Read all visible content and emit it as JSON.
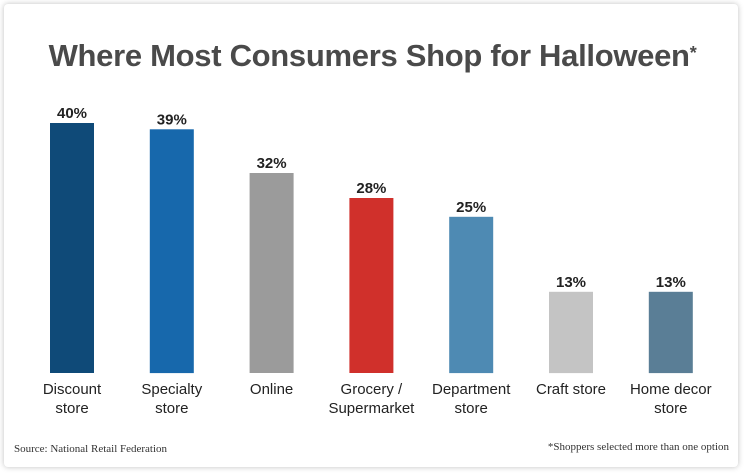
{
  "chart_data": {
    "type": "bar",
    "title": "Where Most Consumers Shop for Halloween",
    "title_mark": "*",
    "categories": [
      [
        "Discount",
        "store"
      ],
      [
        "Specialty",
        "store"
      ],
      [
        "Online"
      ],
      [
        "Grocery /",
        "Supermarket"
      ],
      [
        "Department",
        "store"
      ],
      [
        "Craft store"
      ],
      [
        "Home decor",
        "store"
      ]
    ],
    "values": [
      40,
      39,
      32,
      28,
      25,
      13,
      13
    ],
    "value_labels": [
      "40%",
      "39%",
      "32%",
      "28%",
      "25%",
      "13%",
      "13%"
    ],
    "colors": [
      "#0f4a78",
      "#1768ac",
      "#9b9b9b",
      "#d0302b",
      "#4e8ab3",
      "#c4c4c4",
      "#5a7e96"
    ],
    "ylim": [
      0,
      40
    ],
    "grid": false,
    "legend": "none",
    "xlabel": "",
    "ylabel": ""
  },
  "footer": {
    "source": "Source: National Retail Federation",
    "note": "*Shoppers selected more than one option"
  }
}
